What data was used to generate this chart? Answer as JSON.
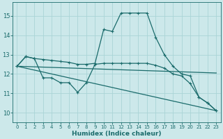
{
  "xlabel": "Humidex (Indice chaleur)",
  "bg_color": "#cce8ea",
  "grid_color": "#aad4d6",
  "line_color": "#1a6b6b",
  "xlim": [
    -0.5,
    23.5
  ],
  "ylim": [
    9.5,
    15.7
  ],
  "yticks": [
    10,
    11,
    12,
    13,
    14,
    15
  ],
  "xticks": [
    0,
    1,
    2,
    3,
    4,
    5,
    6,
    7,
    8,
    9,
    10,
    11,
    12,
    13,
    14,
    15,
    16,
    17,
    18,
    19,
    20,
    21,
    22,
    23
  ],
  "line1_x": [
    0,
    1,
    2,
    3,
    4,
    5,
    6,
    7,
    8,
    9,
    10,
    11,
    12,
    13,
    14,
    15,
    16,
    17,
    18,
    19,
    20,
    21,
    22,
    23
  ],
  "line1_y": [
    12.4,
    12.9,
    12.8,
    12.75,
    12.7,
    12.65,
    12.6,
    12.5,
    12.5,
    12.55,
    14.3,
    14.2,
    15.15,
    15.15,
    15.15,
    15.15,
    13.9,
    13.0,
    12.4,
    12.0,
    11.9,
    10.8,
    10.5,
    10.1
  ],
  "line2_x": [
    0,
    1,
    2,
    3,
    4,
    5,
    6,
    7,
    8,
    9,
    10,
    11,
    12,
    13,
    14,
    15,
    16,
    17,
    18,
    19,
    20,
    21,
    22,
    23
  ],
  "line2_y": [
    12.4,
    12.9,
    12.8,
    11.8,
    11.8,
    11.55,
    11.55,
    11.05,
    11.55,
    12.5,
    12.55,
    12.55,
    12.55,
    12.55,
    12.55,
    12.55,
    12.45,
    12.3,
    12.0,
    11.9,
    11.5,
    10.8,
    10.5,
    10.1
  ],
  "line3_x": [
    0,
    23
  ],
  "line3_y": [
    12.4,
    10.1
  ],
  "line4_x": [
    0,
    23
  ],
  "line4_y": [
    12.4,
    12.05
  ]
}
